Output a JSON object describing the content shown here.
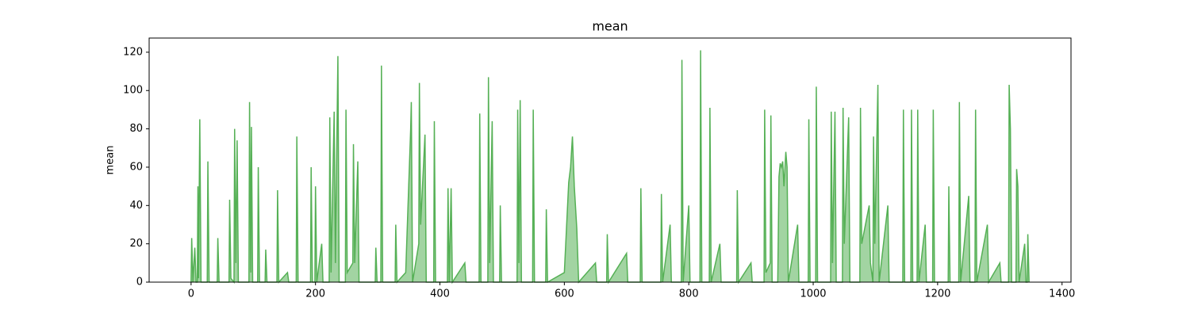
{
  "chart_data": {
    "type": "area",
    "title": "mean",
    "ylabel": "mean",
    "color": "#55b055",
    "x": [
      0,
      1,
      3,
      6,
      8,
      10,
      11,
      12,
      14,
      16,
      26,
      27,
      29,
      42,
      43,
      45,
      61,
      62,
      64,
      69,
      70,
      72,
      74,
      76,
      93,
      94,
      96,
      97,
      99,
      107,
      108,
      110,
      119,
      120,
      122,
      138,
      139,
      141,
      155,
      157,
      169,
      170,
      172,
      192,
      193,
      195,
      199,
      200,
      202,
      210,
      212,
      222,
      223,
      225,
      230,
      232,
      236,
      238,
      248,
      249,
      251,
      260,
      261,
      263,
      268,
      270,
      296,
      297,
      299,
      305,
      306,
      308,
      328,
      329,
      331,
      345,
      353,
      354,
      356,
      366,
      367,
      369,
      376,
      378,
      390,
      391,
      393,
      412,
      413,
      415,
      418,
      420,
      440,
      442,
      463,
      464,
      466,
      477,
      478,
      480,
      484,
      486,
      496,
      497,
      499,
      524,
      525,
      527,
      529,
      531,
      549,
      550,
      552,
      570,
      571,
      573,
      600,
      607,
      610,
      613,
      616,
      620,
      623,
      650,
      652,
      668,
      669,
      671,
      700,
      702,
      722,
      723,
      725,
      755,
      756,
      758,
      770,
      772,
      788,
      789,
      791,
      800,
      802,
      818,
      819,
      821,
      833,
      834,
      836,
      850,
      852,
      877,
      878,
      880,
      900,
      902,
      921,
      922,
      924,
      931,
      932,
      934,
      943,
      945,
      947,
      949,
      951,
      953,
      956,
      958,
      960,
      975,
      977,
      992,
      993,
      995,
      1004,
      1005,
      1007,
      1028,
      1029,
      1031,
      1035,
      1037,
      1047,
      1048,
      1050,
      1057,
      1059,
      1075,
      1076,
      1078,
      1090,
      1092,
      1096,
      1097,
      1099,
      1104,
      1106,
      1120,
      1122,
      1144,
      1145,
      1147,
      1157,
      1158,
      1160,
      1167,
      1168,
      1170,
      1180,
      1182,
      1192,
      1193,
      1195,
      1217,
      1218,
      1220,
      1234,
      1235,
      1237,
      1250,
      1252,
      1260,
      1261,
      1263,
      1280,
      1282,
      1300,
      1302,
      1314,
      1315,
      1317,
      1319,
      1326,
      1327,
      1329,
      1331,
      1340,
      1342,
      1344,
      1345,
      1347
    ],
    "values": [
      0,
      23,
      0,
      18,
      0,
      0,
      50,
      2,
      85,
      0,
      0,
      63,
      0,
      0,
      23,
      0,
      0,
      43,
      2,
      0,
      80,
      10,
      74,
      0,
      0,
      94,
      5,
      81,
      0,
      0,
      60,
      0,
      0,
      17,
      0,
      0,
      48,
      0,
      5,
      0,
      0,
      76,
      0,
      0,
      60,
      0,
      0,
      50,
      0,
      20,
      0,
      0,
      86,
      5,
      89,
      10,
      118,
      0,
      0,
      90,
      5,
      10,
      72,
      10,
      63,
      0,
      0,
      18,
      0,
      0,
      113,
      0,
      0,
      30,
      0,
      5,
      80,
      94,
      0,
      20,
      104,
      30,
      77,
      0,
      0,
      84,
      0,
      0,
      49,
      0,
      49,
      0,
      10,
      0,
      0,
      88,
      0,
      0,
      107,
      10,
      84,
      0,
      0,
      40,
      0,
      0,
      90,
      10,
      95,
      0,
      0,
      90,
      0,
      0,
      38,
      0,
      5,
      52,
      60,
      76,
      50,
      28,
      0,
      10,
      0,
      0,
      25,
      0,
      15,
      0,
      0,
      49,
      0,
      0,
      46,
      0,
      30,
      0,
      0,
      116,
      0,
      40,
      0,
      0,
      121,
      0,
      0,
      91,
      0,
      20,
      0,
      0,
      48,
      0,
      10,
      0,
      0,
      90,
      5,
      10,
      87,
      0,
      0,
      55,
      62,
      60,
      63,
      50,
      68,
      60,
      0,
      30,
      0,
      0,
      85,
      0,
      0,
      102,
      0,
      0,
      89,
      10,
      89,
      0,
      0,
      91,
      20,
      86,
      0,
      0,
      91,
      20,
      40,
      10,
      0,
      76,
      20,
      103,
      0,
      40,
      0,
      0,
      90,
      0,
      0,
      90,
      0,
      0,
      90,
      0,
      30,
      0,
      0,
      90,
      0,
      0,
      50,
      0,
      0,
      94,
      0,
      45,
      0,
      0,
      90,
      0,
      30,
      0,
      10,
      0,
      0,
      103,
      80,
      0,
      0,
      59,
      50,
      0,
      20,
      0,
      0,
      25,
      0
    ],
    "xlim": [
      -67.4,
      1414.4
    ],
    "ylim": [
      0,
      127.4
    ],
    "xticks": [
      0,
      200,
      400,
      600,
      800,
      1000,
      1200,
      1400
    ],
    "yticks": [
      0,
      20,
      40,
      60,
      80,
      100,
      120
    ]
  }
}
